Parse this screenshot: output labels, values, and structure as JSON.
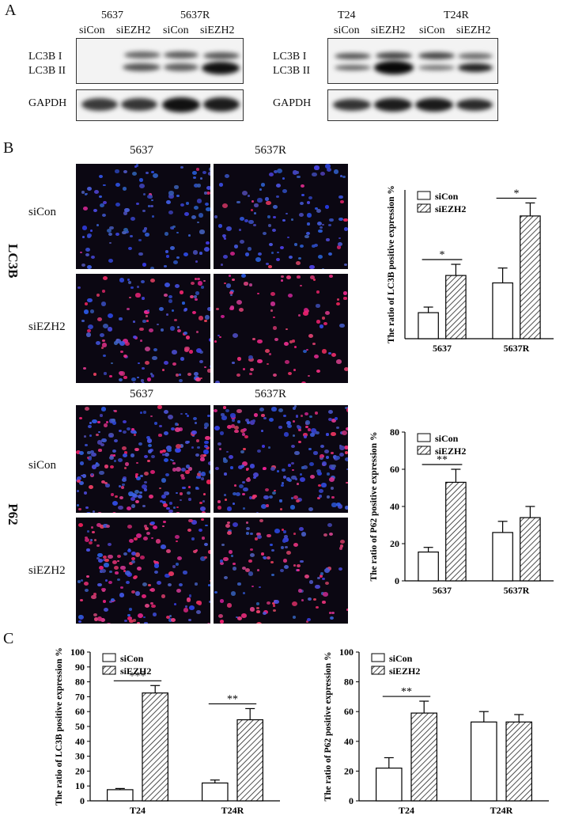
{
  "panelA": {
    "label": "A",
    "blotLeft": {
      "cellLines": [
        "5637",
        "5637R"
      ],
      "lanes": [
        "siCon",
        "siEZH2",
        "siCon",
        "siEZH2"
      ],
      "bandLabels": [
        "LC3B I",
        "LC3B II"
      ],
      "loadingLabel": "GAPDH"
    },
    "blotRight": {
      "cellLines": [
        "T24",
        "T24R"
      ],
      "lanes": [
        "siCon",
        "siEZH2",
        "siCon",
        "siEZH2"
      ],
      "bandLabels": [
        "LC3B I",
        "LC3B II"
      ],
      "loadingLabel": "GAPDH"
    }
  },
  "panelB": {
    "label": "B",
    "lc3b": {
      "rowLabel": "LC3B",
      "cols": [
        "5637",
        "5637R"
      ],
      "rows": [
        "siCon",
        "siEZH2"
      ]
    },
    "p62": {
      "rowLabel": "P62",
      "cols": [
        "5637",
        "5637R"
      ],
      "rows": [
        "siCon",
        "siEZH2"
      ]
    }
  },
  "panelC": {
    "label": "C"
  },
  "colors": {
    "siCon": "#ffffff",
    "siEZH2": "hatched",
    "nucleus": "#3a4bd0",
    "stain": "#d8307a"
  },
  "chart_data": [
    {
      "id": "B-LC3B",
      "type": "bar",
      "categories": [
        "5637",
        "5637R"
      ],
      "series": [
        {
          "name": "siCon",
          "values": [
            7,
            15
          ],
          "errors": [
            1.5,
            4
          ]
        },
        {
          "name": "siEZH2",
          "values": [
            17,
            33
          ],
          "errors": [
            3,
            3.5
          ]
        }
      ],
      "ylabel": "The ratio of LC3B positive expression  %",
      "ylim": [
        0,
        40
      ],
      "yticks": [],
      "significance": [
        {
          "category": "5637",
          "label": "*"
        },
        {
          "category": "5637R",
          "label": "*"
        }
      ],
      "legend": "top-left"
    },
    {
      "id": "B-P62",
      "type": "bar",
      "categories": [
        "5637",
        "5637R"
      ],
      "series": [
        {
          "name": "siCon",
          "values": [
            15.5,
            26
          ],
          "errors": [
            2.5,
            6
          ]
        },
        {
          "name": "siEZH2",
          "values": [
            53,
            34
          ],
          "errors": [
            7,
            6
          ]
        }
      ],
      "ylabel": "The ratio of P62 positive expression  %",
      "ylim": [
        0,
        80
      ],
      "yticks": [
        0,
        20,
        40,
        60,
        80
      ],
      "significance": [
        {
          "category": "5637",
          "label": "**"
        }
      ],
      "legend": "top-left"
    },
    {
      "id": "C-LC3B",
      "type": "bar",
      "categories": [
        "T24",
        "T24R"
      ],
      "series": [
        {
          "name": "siCon",
          "values": [
            7.5,
            12
          ],
          "errors": [
            0.8,
            2
          ]
        },
        {
          "name": "siEZH2",
          "values": [
            72.5,
            54.5
          ],
          "errors": [
            5,
            7.5
          ]
        }
      ],
      "ylabel": "The ratio of LC3B positive expression  %",
      "ylim": [
        0,
        100
      ],
      "yticks": [
        0,
        10,
        20,
        30,
        40,
        50,
        60,
        70,
        80,
        90,
        100
      ],
      "significance": [
        {
          "category": "T24",
          "label": "***"
        },
        {
          "category": "T24R",
          "label": "**"
        }
      ],
      "legend": "top-left"
    },
    {
      "id": "C-P62",
      "type": "bar",
      "categories": [
        "T24",
        "T24R"
      ],
      "series": [
        {
          "name": "siCon",
          "values": [
            22,
            53
          ],
          "errors": [
            7,
            7
          ]
        },
        {
          "name": "siEZH2",
          "values": [
            59,
            53
          ],
          "errors": [
            8,
            5
          ]
        }
      ],
      "ylabel": "The ratio of P62 positive expression  %",
      "ylim": [
        0,
        100
      ],
      "yticks": [
        0,
        20,
        40,
        60,
        80,
        100
      ],
      "significance": [
        {
          "category": "T24",
          "label": "**"
        }
      ],
      "legend": "top-left"
    }
  ]
}
